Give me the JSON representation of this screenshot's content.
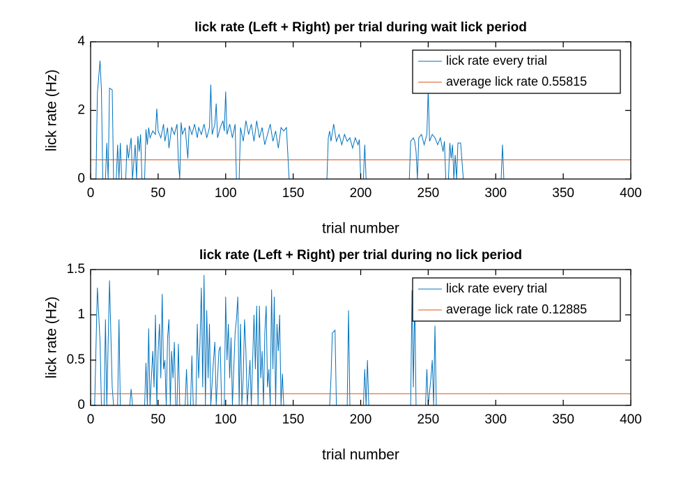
{
  "chart_data": [
    {
      "type": "line",
      "title": "lick rate (Left + Right) per trial during wait lick period",
      "xlabel": "trial number",
      "ylabel": "lick rate (Hz)",
      "xlim": [
        0,
        400
      ],
      "xticks": [
        0,
        50,
        100,
        150,
        200,
        250,
        300,
        350,
        400
      ],
      "ylim": [
        0,
        4
      ],
      "yticks": [
        0,
        2,
        4
      ],
      "legend": "northeast",
      "series": [
        {
          "name": "lick rate every trial",
          "color": "#0072bd",
          "x": [
            1,
            4,
            5,
            7,
            8,
            9,
            11,
            12,
            13,
            14,
            16,
            17,
            19,
            20,
            21,
            22,
            23,
            26,
            27,
            28,
            30,
            31,
            33,
            34,
            35,
            36,
            37,
            38,
            40,
            41,
            42,
            43,
            44,
            46,
            48,
            49,
            50,
            52,
            54,
            55,
            57,
            58,
            60,
            62,
            64,
            65,
            66,
            67,
            68,
            70,
            72,
            73,
            75,
            77,
            79,
            80,
            82,
            84,
            86,
            88,
            89,
            90,
            92,
            93,
            94,
            96,
            98,
            99,
            100,
            101,
            103,
            105,
            107,
            108,
            110,
            111,
            113,
            115,
            117,
            119,
            121,
            123,
            125,
            127,
            129,
            131,
            133,
            135,
            137,
            139,
            141,
            143,
            145,
            147,
            175,
            176,
            177,
            178,
            180,
            182,
            184,
            186,
            188,
            190,
            192,
            194,
            196,
            198,
            199,
            200,
            202,
            203,
            204,
            236,
            237,
            239,
            240,
            241,
            242,
            243,
            245,
            247,
            249,
            250,
            251,
            253,
            255,
            257,
            259,
            261,
            262,
            263,
            265,
            266,
            267,
            268,
            269,
            270,
            271,
            272,
            274,
            276,
            304,
            305,
            306,
            400
          ],
          "values": [
            0,
            0,
            2.5,
            3.45,
            2.6,
            0,
            0,
            1.05,
            0,
            2.65,
            2.6,
            0,
            0,
            1.0,
            0,
            1.05,
            0,
            0,
            1.0,
            0.6,
            1.2,
            0,
            1.0,
            0,
            1.25,
            0.8,
            1.3,
            0,
            0,
            1.45,
            1.0,
            1.5,
            1.2,
            1.4,
            1.3,
            2.05,
            1.4,
            1.2,
            1.6,
            1.1,
            1.5,
            0.9,
            1.5,
            1.3,
            1.6,
            0.5,
            0,
            1.65,
            1.3,
            1.5,
            0.6,
            1.55,
            1.3,
            1.6,
            1.2,
            1.5,
            1.3,
            1.6,
            1.2,
            1.5,
            2.75,
            1.3,
            1.6,
            2.2,
            1.2,
            1.5,
            1.7,
            1.4,
            2.55,
            1.3,
            1.6,
            1.2,
            1.6,
            0,
            0,
            1.5,
            1.1,
            1.7,
            1.3,
            1.6,
            1.1,
            1.7,
            1.2,
            1.5,
            1.0,
            1.3,
            1.6,
            1.1,
            1.4,
            0.9,
            1.5,
            1.4,
            1.5,
            0,
            0,
            1.2,
            1.4,
            1.1,
            1.6,
            1.1,
            1.3,
            1.0,
            1.3,
            1.1,
            1.2,
            0.9,
            1.2,
            1.0,
            1.15,
            0,
            0,
            1.0,
            0,
            0,
            1.1,
            1.2,
            1.1,
            0.8,
            0,
            1.2,
            1.3,
            1.0,
            1.3,
            2.6,
            1.1,
            1.3,
            1.2,
            1.0,
            1.2,
            0.8,
            1.1,
            0,
            0,
            1.05,
            0.6,
            1.0,
            0,
            0.7,
            0,
            1.05,
            1.05,
            0,
            0,
            1.0,
            0,
            0
          ]
        },
        {
          "name": "average lick rate 0.55815",
          "color": "#d95319",
          "x": [
            0,
            400
          ],
          "values": [
            0.55815,
            0.55815
          ]
        }
      ]
    },
    {
      "type": "line",
      "title": "lick rate (Left + Right) per trial during no lick period",
      "xlabel": "trial number",
      "ylabel": "lick rate (Hz)",
      "xlim": [
        0,
        400
      ],
      "xticks": [
        0,
        50,
        100,
        150,
        200,
        250,
        300,
        350,
        400
      ],
      "ylim": [
        0,
        1.5
      ],
      "yticks": [
        0,
        0.5,
        1,
        1.5
      ],
      "legend": "northeast",
      "series": [
        {
          "name": "lick rate every trial",
          "color": "#0072bd",
          "x": [
            1,
            3,
            5,
            7,
            8,
            10,
            11,
            12,
            14,
            16,
            17,
            20,
            21,
            22,
            24,
            29,
            30,
            31,
            40,
            41,
            42,
            43,
            44,
            46,
            47,
            48,
            49,
            50,
            51,
            52,
            53,
            54,
            55,
            56,
            57,
            58,
            59,
            60,
            61,
            62,
            63,
            64,
            65,
            66,
            70,
            71,
            72,
            74,
            75,
            76,
            78,
            79,
            80,
            81,
            82,
            83,
            84,
            85,
            86,
            87,
            88,
            89,
            91,
            92,
            93,
            95,
            96,
            97,
            99,
            100,
            101,
            102,
            103,
            104,
            105,
            107,
            108,
            109,
            110,
            111,
            112,
            113,
            114,
            115,
            116,
            118,
            119,
            121,
            122,
            123,
            124,
            125,
            126,
            127,
            128,
            129,
            130,
            131,
            132,
            133,
            134,
            135,
            136,
            137,
            138,
            139,
            140,
            141,
            142,
            143,
            177,
            178,
            179,
            181,
            182,
            190,
            191,
            192,
            202,
            203,
            204,
            205,
            206,
            237,
            238,
            239,
            240,
            241,
            248,
            249,
            250,
            252,
            253,
            254,
            255,
            256,
            400
          ],
          "values": [
            0,
            0,
            1.3,
            0.7,
            0,
            0,
            0.95,
            0,
            1.38,
            0.2,
            0,
            0,
            0.95,
            0,
            0,
            0,
            0.18,
            0,
            0,
            0.47,
            0,
            0.85,
            0,
            0.6,
            0.2,
            1.0,
            0,
            0.6,
            0.9,
            0.3,
            1.23,
            0.4,
            0.5,
            0,
            0.75,
            0.95,
            0,
            0.6,
            0.3,
            0.7,
            0,
            0,
            0.68,
            0,
            0,
            0.4,
            0,
            0,
            0.55,
            0,
            0,
            0.9,
            0.3,
            0.7,
            1.3,
            0.2,
            1.44,
            0,
            1.05,
            0.3,
            0.9,
            0,
            0.5,
            0.7,
            0,
            0.6,
            0.65,
            0,
            0,
            1.2,
            0.5,
            0.9,
            0.3,
            0.75,
            0,
            0.8,
            0.95,
            1.2,
            0,
            0.9,
            0,
            0.3,
            0.95,
            0.6,
            0,
            0.5,
            0,
            1.0,
            0.4,
            1.1,
            0,
            1.1,
            0.3,
            0.6,
            0,
            0.8,
            1.1,
            0.2,
            0.4,
            0,
            1.28,
            0.4,
            1.2,
            0,
            0.9,
            0.6,
            1.0,
            0,
            0.35,
            0,
            0,
            0.3,
            0.8,
            0.83,
            0,
            0,
            1.05,
            0,
            0,
            0.4,
            0,
            0.5,
            0,
            0,
            1.27,
            0.2,
            1.2,
            0,
            0,
            0.4,
            0,
            0.3,
            0.5,
            0,
            0.88,
            0,
            0
          ]
        },
        {
          "name": "average lick rate 0.12885",
          "color": "#d95319",
          "x": [
            0,
            400
          ],
          "values": [
            0.12885,
            0.12885
          ]
        }
      ]
    }
  ]
}
